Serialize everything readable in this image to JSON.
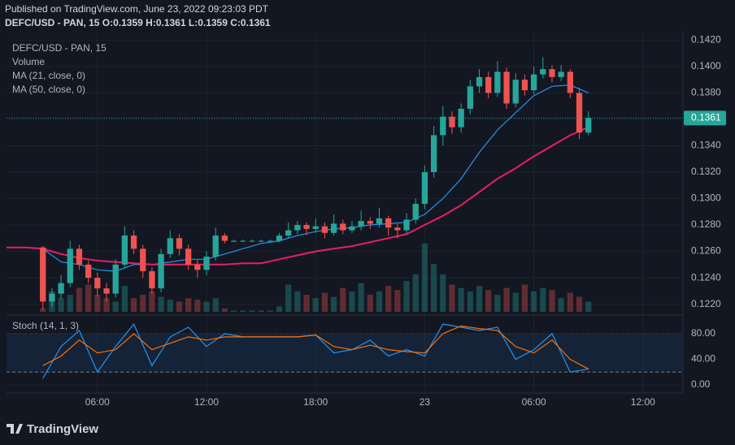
{
  "header": {
    "published": "Published on TradingView.com, June 23, 2022 09:23:03 PDT",
    "symbol_line": "DEFC/USD - PAN, 15 O:0.1359 H:0.1361 L:0.1359 C:0.1361"
  },
  "footer": {
    "logo": "TradingView"
  },
  "chart_data": {
    "type": "candlestick",
    "title": "DEFC/USD - PAN, 15",
    "up_color": "#26a69a",
    "down_color": "#ef5350",
    "grid": true,
    "xlim": [
      1.0,
      38.2
    ],
    "xticks": [
      {
        "value": 6,
        "label": "06:00"
      },
      {
        "value": 12,
        "label": "12:00"
      },
      {
        "value": 18,
        "label": "18:00"
      },
      {
        "value": 24,
        "label": "23"
      },
      {
        "value": 30,
        "label": "06:00"
      },
      {
        "value": 36,
        "label": "12:00"
      }
    ],
    "ylim": [
      0.1213,
      0.1427
    ],
    "yticks": [
      {
        "value": 0.122,
        "label": "0.1220"
      },
      {
        "value": 0.124,
        "label": "0.1240"
      },
      {
        "value": 0.126,
        "label": "0.1260"
      },
      {
        "value": 0.128,
        "label": "0.1280"
      },
      {
        "value": 0.13,
        "label": "0.1300"
      },
      {
        "value": 0.132,
        "label": "0.1320"
      },
      {
        "value": 0.134,
        "label": "0.1340"
      },
      {
        "value": 0.136,
        "label": "0.1360"
      },
      {
        "value": 0.138,
        "label": "0.1380"
      },
      {
        "value": 0.14,
        "label": "0.1400"
      },
      {
        "value": 0.142,
        "label": "0.1420"
      }
    ],
    "last_price": 0.1361,
    "x": [
      3,
      3.5,
      4,
      4.5,
      5,
      5.5,
      6,
      6.5,
      7,
      7.5,
      8,
      8.5,
      9,
      9.5,
      10,
      10.5,
      11,
      11.5,
      12,
      12.5,
      13,
      13.5,
      14,
      14.5,
      15,
      15.5,
      16,
      16.5,
      17,
      17.5,
      18,
      18.5,
      19,
      19.5,
      20,
      20.5,
      21,
      21.5,
      22,
      22.5,
      23,
      23.5,
      24,
      24.5,
      25,
      25.5,
      26,
      26.5,
      27,
      27.5,
      28,
      28.5,
      29,
      29.5,
      30,
      30.5,
      31,
      31.5,
      32,
      32.5,
      33
    ],
    "open": [
      0.1263,
      0.1222,
      0.1228,
      0.1236,
      0.1262,
      0.125,
      0.124,
      0.1232,
      0.1228,
      0.125,
      0.1272,
      0.1262,
      0.1245,
      0.1232,
      0.1258,
      0.127,
      0.1262,
      0.125,
      0.1246,
      0.1256,
      0.1272,
      0.1268,
      0.1268,
      0.1268,
      0.1268,
      0.1268,
      0.1268,
      0.1272,
      0.1276,
      0.128,
      0.1277,
      0.1279,
      0.1274,
      0.1281,
      0.1276,
      0.1279,
      0.1283,
      0.1281,
      0.1285,
      0.1278,
      0.1276,
      0.1284,
      0.1296,
      0.132,
      0.1348,
      0.1362,
      0.1354,
      0.1368,
      0.1385,
      0.1392,
      0.138,
      0.1396,
      0.1372,
      0.139,
      0.1382,
      0.1394,
      0.1398,
      0.1392,
      0.1396,
      0.138,
      0.135
    ],
    "high": [
      0.1264,
      0.1232,
      0.1242,
      0.1268,
      0.1265,
      0.1253,
      0.1244,
      0.1236,
      0.1254,
      0.1279,
      0.1276,
      0.1265,
      0.1248,
      0.1262,
      0.1276,
      0.1273,
      0.1265,
      0.1254,
      0.126,
      0.1278,
      0.1274,
      0.1269,
      0.1269,
      0.1269,
      0.1269,
      0.1269,
      0.1274,
      0.1282,
      0.1283,
      0.1282,
      0.1285,
      0.1282,
      0.1288,
      0.1284,
      0.1283,
      0.1291,
      0.1286,
      0.1293,
      0.1287,
      0.1281,
      0.1289,
      0.13,
      0.1325,
      0.1355,
      0.137,
      0.1366,
      0.1372,
      0.139,
      0.1398,
      0.1396,
      0.1404,
      0.1399,
      0.1395,
      0.1394,
      0.14,
      0.1407,
      0.1401,
      0.1401,
      0.1398,
      0.1384,
      0.1366
    ],
    "low": [
      0.1216,
      0.1218,
      0.1224,
      0.1233,
      0.1246,
      0.1236,
      0.1226,
      0.1222,
      0.1225,
      0.1247,
      0.1258,
      0.124,
      0.1228,
      0.1229,
      0.1255,
      0.1257,
      0.1246,
      0.124,
      0.1242,
      0.1253,
      0.1266,
      0.1267,
      0.1267,
      0.1267,
      0.1267,
      0.1267,
      0.1267,
      0.127,
      0.1273,
      0.1272,
      0.1274,
      0.127,
      0.1272,
      0.1273,
      0.1274,
      0.1276,
      0.1277,
      0.1278,
      0.1272,
      0.127,
      0.1273,
      0.1281,
      0.1292,
      0.1316,
      0.134,
      0.1349,
      0.135,
      0.1364,
      0.138,
      0.1376,
      0.1377,
      0.1368,
      0.1369,
      0.1378,
      0.1379,
      0.1391,
      0.1388,
      0.1389,
      0.1376,
      0.1345,
      0.1348
    ],
    "close": [
      0.1222,
      0.1228,
      0.1236,
      0.1262,
      0.125,
      0.124,
      0.1232,
      0.1228,
      0.125,
      0.1272,
      0.1262,
      0.1245,
      0.1232,
      0.1258,
      0.127,
      0.1262,
      0.125,
      0.1246,
      0.1256,
      0.1272,
      0.1268,
      0.1268,
      0.1268,
      0.1268,
      0.1268,
      0.1268,
      0.1272,
      0.1276,
      0.128,
      0.1277,
      0.1279,
      0.1274,
      0.1281,
      0.1276,
      0.1279,
      0.1283,
      0.1281,
      0.1285,
      0.1278,
      0.1276,
      0.1284,
      0.1296,
      0.132,
      0.1348,
      0.1362,
      0.1354,
      0.1368,
      0.1385,
      0.1392,
      0.138,
      0.1396,
      0.1372,
      0.139,
      0.1382,
      0.1394,
      0.1398,
      0.1392,
      0.1396,
      0.138,
      0.135,
      0.1361
    ],
    "volume": {
      "name": "Volume",
      "ylim": [
        0,
        100
      ],
      "values": [
        5,
        30,
        20,
        25,
        35,
        40,
        25,
        20,
        15,
        38,
        20,
        25,
        30,
        22,
        18,
        15,
        20,
        18,
        15,
        20,
        5,
        2,
        2,
        2,
        2,
        2,
        8,
        40,
        30,
        25,
        20,
        28,
        22,
        35,
        30,
        42,
        25,
        30,
        38,
        32,
        45,
        55,
        100,
        70,
        55,
        40,
        35,
        30,
        38,
        32,
        25,
        35,
        28,
        40,
        30,
        35,
        32,
        20,
        28,
        22,
        15
      ]
    },
    "series": [
      {
        "name": "MA (21, close, 0)",
        "color": "#2196f3",
        "x": [
          1,
          2,
          3,
          4,
          5,
          6,
          7,
          8,
          9,
          10,
          11,
          12,
          13,
          14,
          15,
          16,
          17,
          18,
          19,
          20,
          21,
          22,
          23,
          24,
          25,
          26,
          27,
          28,
          29,
          30,
          31,
          32,
          33
        ],
        "values": [
          0.1263,
          0.1263,
          0.1262,
          0.1252,
          0.125,
          0.1246,
          0.1245,
          0.125,
          0.125,
          0.1252,
          0.1254,
          0.1254,
          0.1258,
          0.1262,
          0.1266,
          0.1268,
          0.1272,
          0.1275,
          0.1277,
          0.1278,
          0.128,
          0.1281,
          0.1282,
          0.1288,
          0.13,
          0.1315,
          0.1335,
          0.1352,
          0.1365,
          0.1378,
          0.1385,
          0.1386,
          0.138
        ]
      },
      {
        "name": "MA (50, close, 0)",
        "color": "#e91e63",
        "x": [
          1,
          2,
          3,
          4,
          5,
          6,
          7,
          8,
          9,
          10,
          11,
          12,
          13,
          14,
          15,
          16,
          17,
          18,
          19,
          20,
          21,
          22,
          23,
          24,
          25,
          26,
          27,
          28,
          29,
          30,
          31,
          32,
          33
        ],
        "values": [
          0.1263,
          0.1263,
          0.1262,
          0.1258,
          0.1255,
          0.1253,
          0.1252,
          0.1251,
          0.125,
          0.125,
          0.125,
          0.125,
          0.125,
          0.1251,
          0.1251,
          0.1254,
          0.1257,
          0.126,
          0.1262,
          0.1264,
          0.1267,
          0.127,
          0.1273,
          0.128,
          0.1287,
          0.1295,
          0.1305,
          0.1315,
          0.1323,
          0.1332,
          0.134,
          0.1348,
          0.1354
        ]
      }
    ],
    "stoch": {
      "name": "Stoch (14, 1, 3)",
      "ylim": [
        -12.7,
        104
      ],
      "bands": [
        20,
        80
      ],
      "yticks": [
        {
          "value": 0,
          "label": "0.00"
        },
        {
          "value": 40,
          "label": "40.00"
        },
        {
          "value": 80,
          "label": "80.00"
        }
      ],
      "x": [
        3,
        4,
        5,
        6,
        7,
        8,
        9,
        10,
        11,
        12,
        13,
        14,
        15,
        16,
        17,
        18,
        19,
        20,
        21,
        22,
        23,
        24,
        25,
        26,
        27,
        28,
        29,
        30,
        31,
        32,
        33
      ],
      "series": [
        {
          "color": "#2196f3",
          "values": [
            10,
            60,
            85,
            20,
            60,
            95,
            30,
            75,
            90,
            60,
            80,
            75,
            75,
            75,
            75,
            78,
            50,
            55,
            70,
            45,
            55,
            45,
            95,
            90,
            85,
            90,
            40,
            55,
            80,
            20,
            25
          ]
        },
        {
          "color": "#ff6d00",
          "values": [
            30,
            45,
            70,
            50,
            55,
            80,
            55,
            65,
            75,
            70,
            75,
            75,
            75,
            75,
            75,
            78,
            60,
            55,
            62,
            55,
            52,
            50,
            80,
            92,
            88,
            85,
            60,
            50,
            70,
            40,
            25
          ]
        }
      ]
    }
  }
}
